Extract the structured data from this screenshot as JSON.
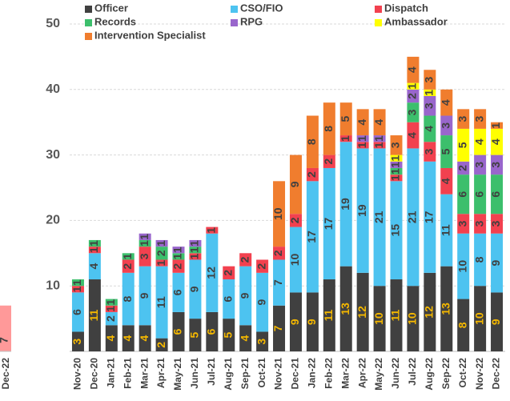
{
  "chart_data": [
    {
      "type": "stacked_bar",
      "categories": [
        "Nov-20",
        "Dec-20",
        "Jan-21",
        "Feb-21",
        "Mar-21",
        "Apr-21",
        "May-21",
        "Jun-21",
        "Jul-21",
        "Aug-21",
        "Sep-21",
        "Oct-21",
        "Nov-21",
        "Dec-21",
        "Jan-22",
        "Feb-22",
        "Mar-22",
        "Apr-22",
        "May-22",
        "Jun-22",
        "Jul-22",
        "Aug-22",
        "Sep-22",
        "Oct-22",
        "Nov-22",
        "Dec-22"
      ],
      "series": [
        {
          "name": "Officer",
          "color": "#404040",
          "values": [
            3,
            11,
            4,
            4,
            4,
            2,
            6,
            5,
            6,
            5,
            4,
            3,
            7,
            9,
            9,
            11,
            13,
            12,
            10,
            11,
            10,
            12,
            13,
            8,
            10,
            9
          ]
        },
        {
          "name": "CSO/FIO",
          "color": "#4dc3f0",
          "values": [
            6,
            4,
            2,
            8,
            9,
            11,
            6,
            9,
            12,
            6,
            9,
            9,
            7,
            10,
            17,
            17,
            19,
            19,
            21,
            15,
            21,
            17,
            11,
            10,
            8,
            9
          ]
        },
        {
          "name": "Dispatch",
          "color": "#f2414f",
          "values": [
            1,
            1,
            1,
            2,
            3,
            1,
            2,
            1,
            1,
            2,
            2,
            2,
            2,
            2,
            2,
            2,
            1,
            1,
            1,
            1,
            4,
            3,
            4,
            3,
            3,
            3
          ]
        },
        {
          "name": "Records",
          "color": "#3cbf6c",
          "values": [
            1,
            1,
            1,
            1,
            1,
            2,
            1,
            1,
            0,
            0,
            0,
            0,
            0,
            0,
            0,
            0,
            0,
            0,
            0,
            1,
            3,
            4,
            5,
            6,
            6,
            6
          ]
        },
        {
          "name": "RPG",
          "color": "#9966cc",
          "values": [
            0,
            0,
            0,
            0,
            1,
            1,
            1,
            1,
            0,
            0,
            0,
            0,
            0,
            0,
            0,
            0,
            0,
            1,
            1,
            1,
            2,
            3,
            3,
            2,
            3,
            3
          ]
        },
        {
          "name": "Ambassador",
          "color": "#ffff00",
          "values": [
            0,
            0,
            0,
            0,
            0,
            0,
            0,
            0,
            0,
            0,
            0,
            0,
            0,
            0,
            0,
            0,
            0,
            0,
            0,
            1,
            1,
            1,
            0,
            5,
            4,
            4
          ]
        },
        {
          "name": "Intervention Specialist",
          "color": "#f07d2e",
          "values": [
            0,
            0,
            0,
            0,
            0,
            0,
            0,
            0,
            0,
            0,
            0,
            0,
            10,
            9,
            8,
            8,
            5,
            4,
            4,
            3,
            4,
            3,
            4,
            3,
            3,
            1
          ]
        }
      ],
      "ylim": [
        0,
        50
      ],
      "yticks": [
        10,
        20,
        30,
        40,
        50
      ],
      "grid": true
    },
    {
      "type": "bar",
      "categories": [
        "Dec-22"
      ],
      "values": [
        7
      ],
      "color": "#ff9999",
      "ylim": [
        0,
        50
      ]
    }
  ]
}
